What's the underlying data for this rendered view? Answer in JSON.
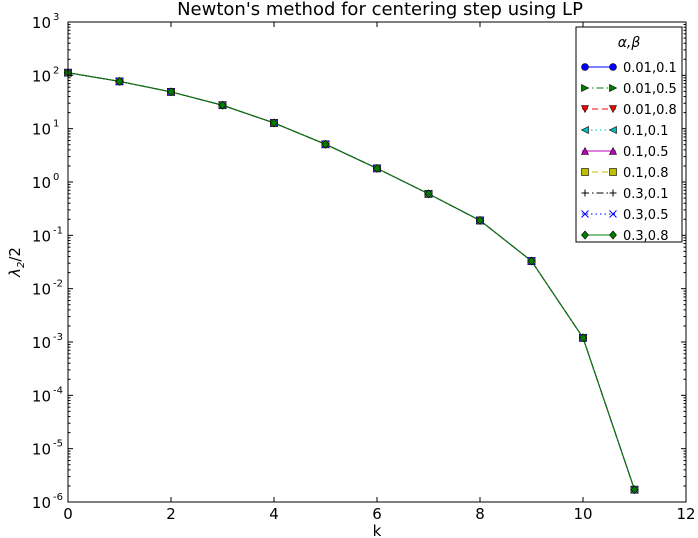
{
  "chart_data": {
    "type": "line",
    "title": "Newton's method for centering step using LP",
    "xlabel": "k",
    "ylabel": "λ2/2",
    "xlim": [
      0,
      12
    ],
    "ylim": [
      1e-06,
      1000
    ],
    "yscale": "log",
    "x_ticks": [
      "0",
      "2",
      "4",
      "6",
      "8",
      "10",
      "12"
    ],
    "y_ticks": [
      {
        "base": "10",
        "exp": "-6"
      },
      {
        "base": "10",
        "exp": "-5"
      },
      {
        "base": "10",
        "exp": "-4"
      },
      {
        "base": "10",
        "exp": "-3"
      },
      {
        "base": "10",
        "exp": "-2"
      },
      {
        "base": "10",
        "exp": "-1"
      },
      {
        "base": "10",
        "exp": "0"
      },
      {
        "base": "10",
        "exp": "1"
      },
      {
        "base": "10",
        "exp": "2"
      },
      {
        "base": "10",
        "exp": "3"
      }
    ],
    "grid": false,
    "legend": {
      "title": "α,β",
      "placement": "top-right"
    },
    "x": [
      0,
      1,
      2,
      3,
      4,
      5,
      6,
      7,
      8,
      9,
      10,
      11
    ],
    "series": [
      {
        "name": "0.01,0.1",
        "color": "#0000ff",
        "marker": "circle",
        "linestyle": "solid",
        "values": [
          112,
          77,
          49,
          27.5,
          12.8,
          5.1,
          1.8,
          0.6,
          0.19,
          0.033,
          0.0012,
          1.7e-06
        ]
      },
      {
        "name": "0.01,0.5",
        "color": "#008000",
        "marker": "triangle-right",
        "linestyle": "dashdot",
        "values": [
          112,
          77,
          49,
          27.5,
          12.8,
          5.1,
          1.8,
          0.6,
          0.19,
          0.033,
          0.0012,
          1.7e-06
        ]
      },
      {
        "name": "0.01,0.8",
        "color": "#ff0000",
        "marker": "triangle-down",
        "linestyle": "dashed",
        "values": [
          112,
          77,
          49,
          27.5,
          12.8,
          5.1,
          1.8,
          0.6,
          0.19,
          0.033,
          0.0012,
          1.7e-06
        ]
      },
      {
        "name": "0.1,0.1",
        "color": "#00bfbf",
        "marker": "triangle-left",
        "linestyle": "dotted",
        "values": [
          112,
          77,
          49,
          27.5,
          12.8,
          5.1,
          1.8,
          0.6,
          0.19,
          0.033,
          0.0012,
          1.7e-06
        ]
      },
      {
        "name": "0.1,0.5",
        "color": "#bf00bf",
        "marker": "triangle-up",
        "linestyle": "solid",
        "values": [
          112,
          77,
          49,
          27.5,
          12.8,
          5.1,
          1.8,
          0.6,
          0.19,
          0.033,
          0.0012,
          1.7e-06
        ]
      },
      {
        "name": "0.1,0.8",
        "color": "#bfbf00",
        "marker": "square",
        "linestyle": "dashed",
        "values": [
          112,
          77,
          49,
          27.5,
          12.8,
          5.1,
          1.8,
          0.6,
          0.19,
          0.033,
          0.0012,
          1.7e-06
        ]
      },
      {
        "name": "0.3,0.1",
        "color": "#000000",
        "marker": "plus",
        "linestyle": "dashdot",
        "values": [
          112,
          77,
          49,
          27.5,
          12.8,
          5.1,
          1.8,
          0.6,
          0.19,
          0.033,
          0.0012,
          1.7e-06
        ]
      },
      {
        "name": "0.3,0.5",
        "color": "#0000ff",
        "marker": "x",
        "linestyle": "dotted",
        "values": [
          112,
          77,
          49,
          27.5,
          12.8,
          5.1,
          1.8,
          0.6,
          0.19,
          0.033,
          0.0012,
          1.7e-06
        ]
      },
      {
        "name": "0.3,0.8",
        "color": "#008000",
        "marker": "diamond",
        "linestyle": "solid",
        "values": [
          112,
          77,
          49,
          27.5,
          12.8,
          5.1,
          1.8,
          0.6,
          0.19,
          0.033,
          0.0012,
          1.7e-06
        ]
      }
    ]
  }
}
